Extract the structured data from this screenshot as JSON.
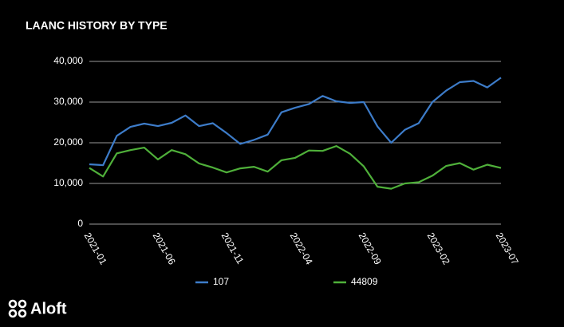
{
  "logo": "Aloft",
  "chart_data": {
    "type": "line",
    "title": "LAANC HISTORY BY TYPE",
    "categories": [
      "2021-01",
      null,
      null,
      null,
      null,
      "2021-06",
      null,
      null,
      null,
      null,
      "2021-11",
      null,
      null,
      null,
      null,
      "2022-04",
      null,
      null,
      null,
      null,
      "2022-09",
      null,
      null,
      null,
      null,
      "2023-02",
      null,
      null,
      null,
      null,
      "2023-07"
    ],
    "series": [
      {
        "name": "107",
        "color": "#3d7cc9",
        "values": [
          14700,
          14500,
          21700,
          23900,
          24700,
          24100,
          24900,
          26700,
          24100,
          24800,
          22400,
          19700,
          20700,
          22000,
          27500,
          28600,
          29500,
          31500,
          30200,
          29800,
          30000,
          24000,
          20000,
          23200,
          24800,
          30000,
          32800,
          34900,
          35200,
          33600,
          36000
        ]
      },
      {
        "name": "44809",
        "color": "#4fb03a",
        "values": [
          13800,
          11700,
          17400,
          18200,
          18800,
          15900,
          18200,
          17200,
          14900,
          13900,
          12700,
          13700,
          14100,
          12900,
          15700,
          16300,
          18100,
          18000,
          19200,
          17300,
          14200,
          9200,
          8700,
          10000,
          10300,
          11900,
          14300,
          15000,
          13400,
          14600,
          13800
        ]
      }
    ],
    "ylim": [
      0,
      40000
    ],
    "yticks": [
      0,
      {
        "value": 10000,
        "label": "10,000"
      },
      {
        "value": 20000,
        "label": "20,000"
      },
      {
        "value": 30000,
        "label": "30,000"
      },
      {
        "value": 40000,
        "label": "40,000"
      }
    ],
    "grid": true,
    "legend": "bottom"
  }
}
